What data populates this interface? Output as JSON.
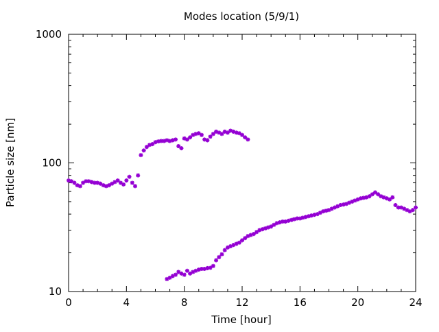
{
  "chart_data": {
    "type": "scatter",
    "title": "Modes location (5/9/1)",
    "xlabel": "Time [hour]",
    "ylabel": "Particle size [nm]",
    "xlim": [
      0,
      24
    ],
    "ylim": [
      10,
      1000
    ],
    "yscale": "log",
    "x_ticks": [
      0,
      4,
      8,
      12,
      16,
      20,
      24
    ],
    "y_ticks": [
      10,
      100,
      1000
    ],
    "grid": false,
    "legend": "none",
    "marker_color": "#9400D3",
    "series": [
      {
        "x": [
          0.0,
          0.2,
          0.4,
          0.6,
          0.8,
          1.0,
          1.2,
          1.4,
          1.6,
          1.8,
          2.0,
          2.2,
          2.4,
          2.6,
          2.8,
          3.0,
          3.2,
          3.4,
          3.6,
          3.8,
          4.0,
          4.2,
          4.4,
          4.6,
          4.8,
          5.0,
          5.2,
          5.4,
          5.6,
          5.8,
          6.0,
          6.2,
          6.4,
          6.6,
          6.8,
          7.0,
          7.2,
          7.4,
          7.6,
          7.8,
          8.0,
          8.2,
          8.4,
          8.6,
          8.8,
          9.0,
          9.2,
          9.4,
          9.6,
          9.8,
          10.0,
          10.2,
          10.4,
          10.6,
          10.8,
          11.0,
          11.2,
          11.4,
          11.6,
          11.8,
          12.0,
          12.2,
          12.4
        ],
        "y": [
          73,
          72,
          70,
          67,
          66,
          70,
          72,
          72,
          71,
          70,
          70,
          69,
          67,
          66,
          67,
          69,
          71,
          73,
          70,
          68,
          73,
          78,
          70,
          66,
          80,
          115,
          125,
          133,
          138,
          140,
          145,
          147,
          148,
          148,
          150,
          148,
          150,
          152,
          135,
          130,
          155,
          152,
          158,
          165,
          168,
          170,
          165,
          152,
          150,
          160,
          168,
          175,
          172,
          168,
          175,
          172,
          178,
          175,
          172,
          170,
          165,
          158,
          152
        ]
      },
      {
        "x": [
          6.8,
          7.0,
          7.2,
          7.4,
          7.6,
          7.8,
          8.0,
          8.2,
          8.4,
          8.6,
          8.8,
          9.0,
          9.2,
          9.4,
          9.6,
          9.8,
          10.0,
          10.2,
          10.4,
          10.6,
          10.8,
          11.0,
          11.2,
          11.4,
          11.6,
          11.8,
          12.0,
          12.2,
          12.4,
          12.6,
          12.8,
          13.0,
          13.2,
          13.4,
          13.6,
          13.8,
          14.0,
          14.2,
          14.4,
          14.6,
          14.8,
          15.0,
          15.2,
          15.4,
          15.6,
          15.8,
          16.0,
          16.2,
          16.4,
          16.6,
          16.8,
          17.0,
          17.2,
          17.4,
          17.6,
          17.8,
          18.0,
          18.2,
          18.4,
          18.6,
          18.8,
          19.0,
          19.2,
          19.4,
          19.6,
          19.8,
          20.0,
          20.2,
          20.4,
          20.6,
          20.8,
          21.0,
          21.2,
          21.4,
          21.6,
          21.8,
          22.0,
          22.2,
          22.4,
          22.6,
          22.8,
          23.0,
          23.2,
          23.4,
          23.6,
          23.8,
          24.0
        ],
        "y": [
          12.5,
          12.8,
          13.2,
          13.5,
          14.2,
          13.8,
          13.5,
          14.5,
          13.8,
          14.2,
          14.5,
          14.8,
          15.0,
          15.0,
          15.2,
          15.3,
          15.8,
          17.5,
          18.5,
          19.5,
          21,
          22,
          22.5,
          23,
          23.5,
          24,
          25,
          26,
          27,
          27.5,
          28,
          29,
          30,
          30.5,
          31,
          31.5,
          32,
          33,
          34,
          34.5,
          35,
          35,
          35.5,
          36,
          36.5,
          37,
          37,
          37.5,
          38,
          38.5,
          39,
          39.5,
          40,
          41,
          42,
          42.5,
          43,
          44,
          45,
          46,
          47,
          47.5,
          48,
          49,
          50,
          51,
          52,
          53,
          53.5,
          54,
          55,
          57,
          59,
          57,
          55,
          54,
          53,
          52,
          54,
          47,
          45,
          45,
          44,
          43,
          42,
          43,
          45
        ]
      }
    ]
  }
}
